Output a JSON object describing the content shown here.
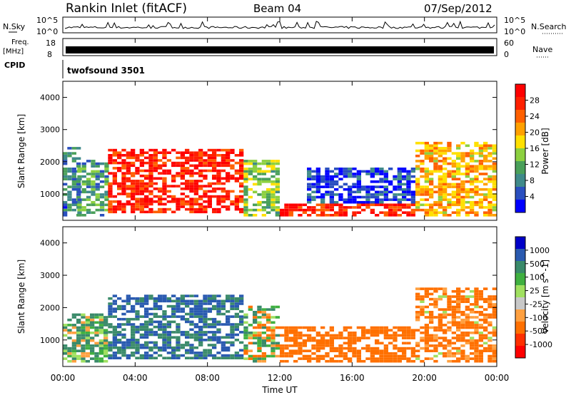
{
  "header": {
    "station": "Rankin Inlet (fitACF)",
    "beam": "Beam 04",
    "date": "07/Sep/2012"
  },
  "top_panels": {
    "nsky_label": "N.Sky",
    "nsky_ticks": [
      "10^5",
      "10^0"
    ],
    "nsearch_label": "N.Search",
    "nsearch_ticks": [
      "10^5",
      "10^0"
    ],
    "freq_label": "Freq.",
    "freq_unit": "[MHz]",
    "freq_ticks": [
      "18",
      "8"
    ],
    "nave_label": "Nave",
    "nave_ticks": [
      "60",
      "0"
    ],
    "cpid_label": "CPID",
    "cpid_value": "twofsound 3501"
  },
  "colors": {
    "power_scale": [
      "#0000ff",
      "#2a4fbf",
      "#3f8a8a",
      "#4aa05a",
      "#8cd040",
      "#ffe000",
      "#ffa000",
      "#ff6000",
      "#ff2000",
      "#ff0000"
    ],
    "velocity_scale": [
      "#ff0000",
      "#ff3000",
      "#ff7000",
      "#ffa040",
      "#c8c8c8",
      "#a0e060",
      "#40b040",
      "#3a8a6a",
      "#2a5ab0",
      "#0000c8"
    ]
  },
  "chart_data": [
    {
      "type": "heatmap",
      "panel": "power",
      "ylabel": "Slant Range [km]",
      "yticks": [
        "1000",
        "2000",
        "3000",
        "4000"
      ],
      "ylim": [
        180,
        4500
      ],
      "xlim": [
        0,
        24
      ],
      "colorbar_label": "Power [dB]",
      "colorbar_ticks": [
        "28",
        "24",
        "20",
        "16",
        "12",
        "8",
        "4"
      ],
      "clim": [
        0,
        32
      ],
      "bands": [
        {
          "t0": 0.0,
          "t1": 0.8,
          "r0": 300,
          "r1": 2400,
          "dB": 8
        },
        {
          "t0": 0.8,
          "t1": 2.5,
          "r0": 300,
          "r1": 2000,
          "dB": 10
        },
        {
          "t0": 2.5,
          "t1": 10.0,
          "r0": 400,
          "r1": 2400,
          "dB": 28
        },
        {
          "t0": 10.0,
          "t1": 12.0,
          "r0": 300,
          "r1": 2000,
          "dB": 14
        },
        {
          "t0": 12.0,
          "t1": 19.5,
          "r0": 300,
          "r1": 700,
          "dB": 28
        },
        {
          "t0": 13.5,
          "t1": 19.5,
          "r0": 700,
          "r1": 1800,
          "dB": 4
        },
        {
          "t0": 19.5,
          "t1": 24.0,
          "r0": 300,
          "r1": 2600,
          "dB": 20
        }
      ]
    },
    {
      "type": "heatmap",
      "panel": "velocity",
      "ylabel": "Slant Range [km]",
      "yticks": [
        "1000",
        "2000",
        "3000",
        "4000"
      ],
      "ylim": [
        180,
        4500
      ],
      "xlim": [
        0,
        24
      ],
      "xticks": [
        "00:00",
        "04:00",
        "08:00",
        "12:00",
        "16:00",
        "20:00",
        "00:00"
      ],
      "xlabel": "Time UT",
      "colorbar_label": "Velocity [m s^-1]",
      "colorbar_ticks": [
        "1000",
        "500",
        "100",
        "25",
        "-25",
        "-100",
        "-500",
        "-1000"
      ],
      "bands": [
        {
          "t0": 0.0,
          "t1": 2.5,
          "r0": 300,
          "r1": 1800,
          "vel": 100
        },
        {
          "t0": 2.5,
          "t1": 10.0,
          "r0": 400,
          "r1": 2400,
          "vel": 500
        },
        {
          "t0": 10.0,
          "t1": 12.0,
          "r0": 300,
          "r1": 2000,
          "vel": 0
        },
        {
          "t0": 12.0,
          "t1": 19.5,
          "r0": 300,
          "r1": 1400,
          "vel": -300
        },
        {
          "t0": 19.5,
          "t1": 24.0,
          "r0": 300,
          "r1": 2600,
          "vel": -200
        }
      ]
    }
  ]
}
